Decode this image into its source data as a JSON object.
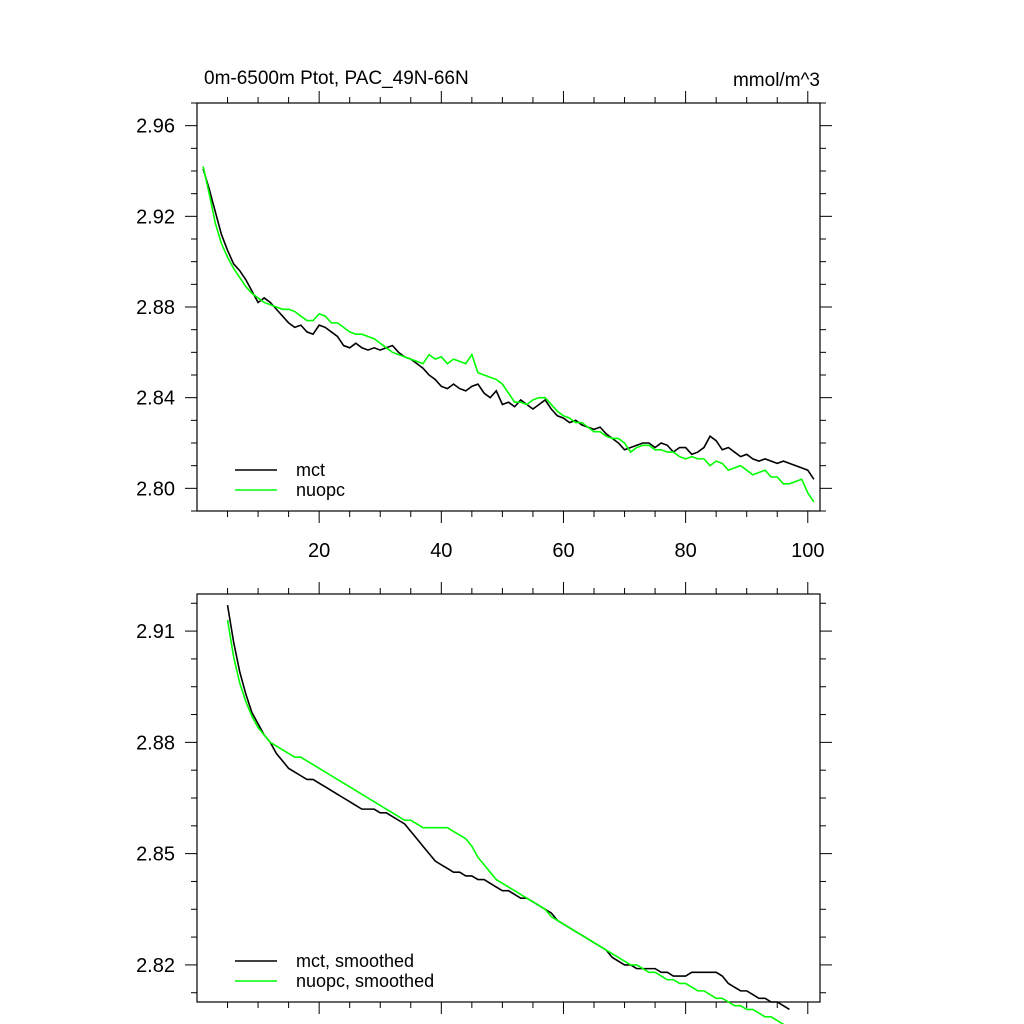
{
  "chart_data": [
    {
      "type": "line",
      "title": "0m-6500m Ptot, PAC_49N-66N",
      "units": "mmol/m^3",
      "xlabel": "",
      "ylabel": "",
      "xlim": [
        0,
        102
      ],
      "ylim": [
        2.79,
        2.97
      ],
      "xticks": [
        20,
        40,
        60,
        80,
        100
      ],
      "yticks": [
        2.8,
        2.84,
        2.88,
        2.92,
        2.96
      ],
      "ytick_labels": [
        "2.80",
        "2.84",
        "2.88",
        "2.92",
        "2.96"
      ],
      "legend_position": "bottom-left",
      "grid": false,
      "series": [
        {
          "name": "mct",
          "color": "#000000",
          "x": [
            1,
            2,
            3,
            4,
            5,
            6,
            7,
            8,
            9,
            10,
            11,
            12,
            13,
            14,
            15,
            16,
            17,
            18,
            19,
            20,
            21,
            22,
            23,
            24,
            25,
            26,
            27,
            28,
            29,
            30,
            31,
            32,
            33,
            34,
            35,
            36,
            37,
            38,
            39,
            40,
            41,
            42,
            43,
            44,
            45,
            46,
            47,
            48,
            49,
            50,
            51,
            52,
            53,
            54,
            55,
            56,
            57,
            58,
            59,
            60,
            61,
            62,
            63,
            64,
            65,
            66,
            67,
            68,
            69,
            70,
            71,
            72,
            73,
            74,
            75,
            76,
            77,
            78,
            79,
            80,
            81,
            82,
            83,
            84,
            85,
            86,
            87,
            88,
            89,
            90,
            91,
            92,
            93,
            94,
            95,
            96,
            97,
            98,
            99,
            100,
            101
          ],
          "values": [
            2.941,
            2.932,
            2.922,
            2.912,
            2.905,
            2.899,
            2.896,
            2.892,
            2.887,
            2.882,
            2.884,
            2.882,
            2.879,
            2.876,
            2.873,
            2.871,
            2.872,
            2.869,
            2.868,
            2.872,
            2.871,
            2.869,
            2.867,
            2.863,
            2.862,
            2.864,
            2.862,
            2.861,
            2.862,
            2.861,
            2.862,
            2.863,
            2.86,
            2.858,
            2.857,
            2.855,
            2.853,
            2.85,
            2.848,
            2.845,
            2.844,
            2.846,
            2.844,
            2.843,
            2.845,
            2.846,
            2.842,
            2.84,
            2.843,
            2.837,
            2.838,
            2.836,
            2.839,
            2.837,
            2.835,
            2.837,
            2.839,
            2.835,
            2.832,
            2.831,
            2.829,
            2.83,
            2.828,
            2.827,
            2.826,
            2.827,
            2.824,
            2.822,
            2.82,
            2.817,
            2.818,
            2.819,
            2.82,
            2.82,
            2.818,
            2.82,
            2.819,
            2.816,
            2.818,
            2.818,
            2.815,
            2.816,
            2.818,
            2.823,
            2.821,
            2.817,
            2.818,
            2.816,
            2.814,
            2.815,
            2.813,
            2.812,
            2.813,
            2.812,
            2.811,
            2.812,
            2.811,
            2.81,
            2.809,
            2.808,
            2.804
          ]
        },
        {
          "name": "nuopc",
          "color": "#00ff00",
          "x": [
            1,
            2,
            3,
            4,
            5,
            6,
            7,
            8,
            9,
            10,
            11,
            12,
            13,
            14,
            15,
            16,
            17,
            18,
            19,
            20,
            21,
            22,
            23,
            24,
            25,
            26,
            27,
            28,
            29,
            30,
            31,
            32,
            33,
            34,
            35,
            36,
            37,
            38,
            39,
            40,
            41,
            42,
            43,
            44,
            45,
            46,
            47,
            48,
            49,
            50,
            51,
            52,
            53,
            54,
            55,
            56,
            57,
            58,
            59,
            60,
            61,
            62,
            63,
            64,
            65,
            66,
            67,
            68,
            69,
            70,
            71,
            72,
            73,
            74,
            75,
            76,
            77,
            78,
            79,
            80,
            81,
            82,
            83,
            84,
            85,
            86,
            87,
            88,
            89,
            90,
            91,
            92,
            93,
            94,
            95,
            96,
            97,
            98,
            99,
            100,
            101
          ],
          "values": [
            2.942,
            2.93,
            2.917,
            2.908,
            2.902,
            2.897,
            2.893,
            2.889,
            2.886,
            2.884,
            2.882,
            2.881,
            2.88,
            2.879,
            2.879,
            2.878,
            2.876,
            2.874,
            2.874,
            2.877,
            2.876,
            2.873,
            2.873,
            2.871,
            2.869,
            2.868,
            2.868,
            2.867,
            2.866,
            2.864,
            2.862,
            2.86,
            2.859,
            2.858,
            2.857,
            2.856,
            2.855,
            2.859,
            2.857,
            2.858,
            2.855,
            2.857,
            2.856,
            2.855,
            2.859,
            2.851,
            2.85,
            2.849,
            2.848,
            2.846,
            2.842,
            2.838,
            2.838,
            2.837,
            2.839,
            2.84,
            2.84,
            2.837,
            2.834,
            2.832,
            2.831,
            2.829,
            2.829,
            2.827,
            2.825,
            2.825,
            2.823,
            2.822,
            2.822,
            2.82,
            2.816,
            2.818,
            2.819,
            2.819,
            2.817,
            2.817,
            2.816,
            2.816,
            2.814,
            2.813,
            2.814,
            2.813,
            2.813,
            2.81,
            2.812,
            2.811,
            2.808,
            2.809,
            2.81,
            2.808,
            2.806,
            2.807,
            2.808,
            2.805,
            2.805,
            2.802,
            2.802,
            2.803,
            2.804,
            2.798,
            2.794
          ]
        }
      ]
    },
    {
      "type": "line",
      "title": "",
      "xlabel": "",
      "ylabel": "",
      "xlim": [
        0,
        102
      ],
      "ylim": [
        2.81,
        2.92
      ],
      "xticks": [
        20,
        40,
        60,
        80,
        100
      ],
      "yticks": [
        2.82,
        2.85,
        2.88,
        2.91
      ],
      "ytick_labels": [
        "2.82",
        "2.85",
        "2.88",
        "2.91"
      ],
      "legend_position": "bottom-left",
      "grid": false,
      "series": [
        {
          "name": "mct, smoothed",
          "color": "#000000",
          "x": [
            5,
            6,
            7,
            8,
            9,
            10,
            11,
            12,
            13,
            14,
            15,
            16,
            17,
            18,
            19,
            20,
            21,
            22,
            23,
            24,
            25,
            26,
            27,
            28,
            29,
            30,
            31,
            32,
            33,
            34,
            35,
            36,
            37,
            38,
            39,
            40,
            41,
            42,
            43,
            44,
            45,
            46,
            47,
            48,
            49,
            50,
            51,
            52,
            53,
            54,
            55,
            56,
            57,
            58,
            59,
            60,
            61,
            62,
            63,
            64,
            65,
            66,
            67,
            68,
            69,
            70,
            71,
            72,
            73,
            74,
            75,
            76,
            77,
            78,
            79,
            80,
            81,
            82,
            83,
            84,
            85,
            86,
            87,
            88,
            89,
            90,
            91,
            92,
            93,
            94,
            95,
            96,
            97
          ],
          "values": [
            2.917,
            2.907,
            2.899,
            2.893,
            2.888,
            2.885,
            2.882,
            2.88,
            2.877,
            2.875,
            2.873,
            2.872,
            2.871,
            2.87,
            2.87,
            2.869,
            2.868,
            2.867,
            2.866,
            2.865,
            2.864,
            2.863,
            2.862,
            2.862,
            2.862,
            2.861,
            2.861,
            2.86,
            2.859,
            2.858,
            2.856,
            2.854,
            2.852,
            2.85,
            2.848,
            2.847,
            2.846,
            2.845,
            2.845,
            2.844,
            2.844,
            2.843,
            2.843,
            2.842,
            2.841,
            2.84,
            2.84,
            2.839,
            2.838,
            2.838,
            2.837,
            2.836,
            2.835,
            2.834,
            2.832,
            2.831,
            2.83,
            2.829,
            2.828,
            2.827,
            2.826,
            2.825,
            2.824,
            2.822,
            2.821,
            2.82,
            2.82,
            2.819,
            2.819,
            2.819,
            2.819,
            2.818,
            2.818,
            2.817,
            2.817,
            2.817,
            2.818,
            2.818,
            2.818,
            2.818,
            2.818,
            2.817,
            2.815,
            2.814,
            2.813,
            2.813,
            2.812,
            2.811,
            2.811,
            2.81,
            2.81,
            2.809,
            2.808
          ]
        },
        {
          "name": "nuopc, smoothed",
          "color": "#00ff00",
          "x": [
            5,
            6,
            7,
            8,
            9,
            10,
            11,
            12,
            13,
            14,
            15,
            16,
            17,
            18,
            19,
            20,
            21,
            22,
            23,
            24,
            25,
            26,
            27,
            28,
            29,
            30,
            31,
            32,
            33,
            34,
            35,
            36,
            37,
            38,
            39,
            40,
            41,
            42,
            43,
            44,
            45,
            46,
            47,
            48,
            49,
            50,
            51,
            52,
            53,
            54,
            55,
            56,
            57,
            58,
            59,
            60,
            61,
            62,
            63,
            64,
            65,
            66,
            67,
            68,
            69,
            70,
            71,
            72,
            73,
            74,
            75,
            76,
            77,
            78,
            79,
            80,
            81,
            82,
            83,
            84,
            85,
            86,
            87,
            88,
            89,
            90,
            91,
            92,
            93,
            94,
            95,
            96,
            97
          ],
          "values": [
            2.913,
            2.903,
            2.896,
            2.891,
            2.887,
            2.884,
            2.882,
            2.88,
            2.879,
            2.878,
            2.877,
            2.876,
            2.876,
            2.875,
            2.874,
            2.873,
            2.872,
            2.871,
            2.87,
            2.869,
            2.868,
            2.867,
            2.866,
            2.865,
            2.864,
            2.863,
            2.862,
            2.861,
            2.86,
            2.859,
            2.859,
            2.858,
            2.857,
            2.857,
            2.857,
            2.857,
            2.857,
            2.856,
            2.855,
            2.854,
            2.852,
            2.849,
            2.847,
            2.845,
            2.843,
            2.842,
            2.841,
            2.84,
            2.839,
            2.838,
            2.837,
            2.836,
            2.835,
            2.833,
            2.832,
            2.831,
            2.83,
            2.829,
            2.828,
            2.827,
            2.826,
            2.825,
            2.824,
            2.823,
            2.822,
            2.821,
            2.82,
            2.82,
            2.819,
            2.818,
            2.818,
            2.817,
            2.816,
            2.816,
            2.815,
            2.815,
            2.814,
            2.813,
            2.813,
            2.812,
            2.811,
            2.811,
            2.81,
            2.809,
            2.809,
            2.808,
            2.808,
            2.807,
            2.806,
            2.806,
            2.805,
            2.804,
            2.803
          ]
        }
      ]
    }
  ]
}
